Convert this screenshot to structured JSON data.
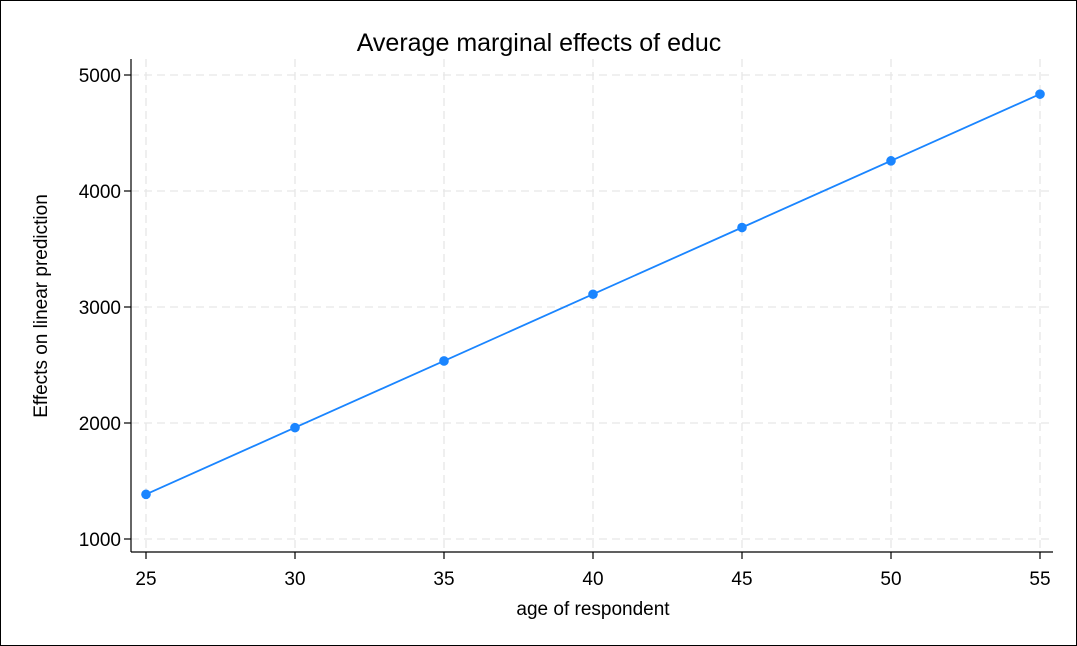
{
  "chart_data": {
    "type": "line",
    "title": "Average marginal effects of educ",
    "xlabel": "age of respondent",
    "ylabel": "Effects on linear prediction",
    "x": [
      25,
      30,
      35,
      40,
      45,
      50,
      55
    ],
    "series": [
      {
        "values": [
          1385,
          1960,
          2535,
          3110,
          3685,
          4260,
          4835
        ],
        "color": "#1a85ff"
      }
    ],
    "xticks": [
      25,
      30,
      35,
      40,
      45,
      50,
      55
    ],
    "yticks": [
      1000,
      2000,
      3000,
      4000,
      5000
    ],
    "xlim": [
      25,
      55
    ],
    "ylim": [
      1000,
      5000
    ],
    "grid": true,
    "legend": "none"
  }
}
